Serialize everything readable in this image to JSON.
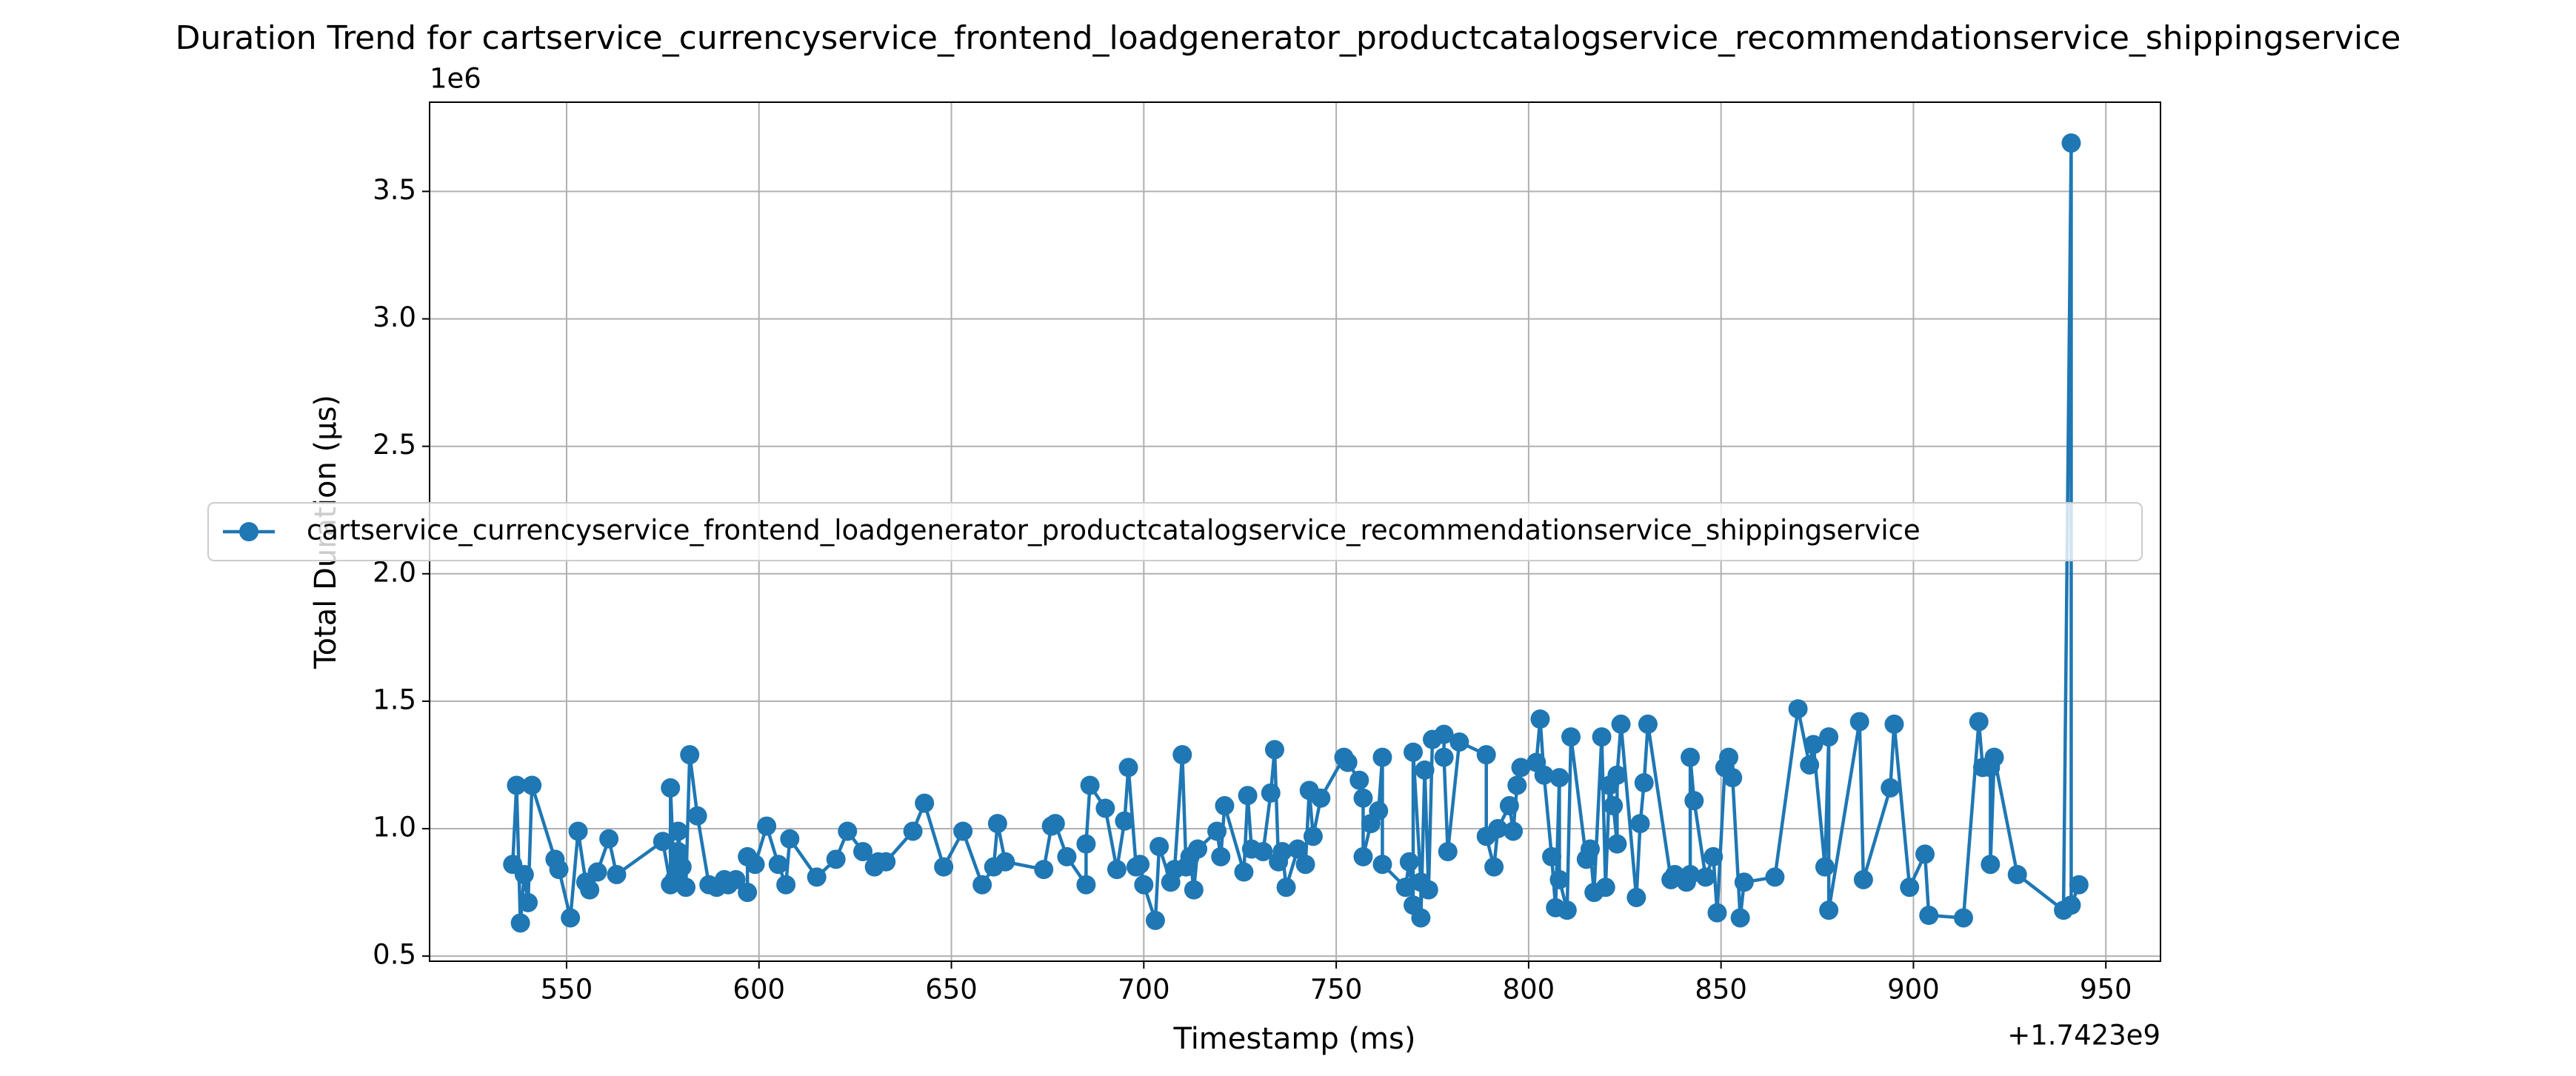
{
  "chart_data": {
    "type": "line",
    "title": "Duration Trend for cartservice_currencyservice_frontend_loadgenerator_productcatalogservice_recommendationservice_shippingservice",
    "xlabel": "Timestamp (ms)",
    "ylabel": "Total Duration (µs)",
    "x_offset_label": "+1.7423e9",
    "y_offset_label": "1e6",
    "xlim": [
      514.4,
      964.2
    ],
    "ylim": [
      0.48,
      3.85
    ],
    "xticks": [
      550,
      600,
      650,
      700,
      750,
      800,
      850,
      900,
      950
    ],
    "yticks": [
      0.5,
      {
        "value": 1.0,
        "label": "1.0"
      },
      1.5,
      {
        "value": 2.0,
        "label": "2.0"
      },
      2.5,
      {
        "value": 3.0,
        "label": "3.0"
      },
      3.5
    ],
    "grid": true,
    "legend": "center left",
    "marker": "o",
    "x": [
      536,
      537,
      538,
      539,
      540,
      541,
      547,
      548,
      551,
      553,
      555,
      556,
      558,
      561,
      563,
      575,
      577,
      577,
      578,
      579,
      579,
      580,
      581,
      582,
      584,
      587,
      589,
      591,
      592,
      594,
      597,
      597,
      599,
      602,
      605,
      607,
      608,
      615,
      620,
      623,
      627,
      630,
      631,
      633,
      640,
      643,
      648,
      653,
      658,
      661,
      662,
      664,
      674,
      676,
      677,
      680,
      685,
      685,
      686,
      690,
      693,
      695,
      696,
      698,
      699,
      700,
      703,
      704,
      707,
      708,
      710,
      711,
      712,
      713,
      714,
      719,
      720,
      721,
      726,
      727,
      728,
      731,
      733,
      734,
      735,
      736,
      737,
      740,
      742,
      743,
      744,
      746,
      752,
      753,
      756,
      757,
      757,
      759,
      761,
      762,
      762,
      768,
      769,
      770,
      770,
      772,
      772,
      773,
      774,
      775,
      778,
      778,
      779,
      782,
      789,
      789,
      791,
      792,
      795,
      796,
      797,
      798,
      802,
      803,
      804,
      806,
      807,
      808,
      808,
      810,
      811,
      815,
      816,
      817,
      819,
      820,
      821,
      822,
      823,
      823,
      824,
      828,
      829,
      830,
      831,
      837,
      838,
      841,
      842,
      842,
      843,
      846,
      848,
      849,
      851,
      852,
      853,
      855,
      856,
      864,
      870,
      873,
      874,
      877,
      878,
      878,
      886,
      887,
      894,
      895,
      899,
      903,
      904,
      913,
      917,
      918,
      920,
      920,
      921,
      927,
      939,
      941,
      941,
      943
    ],
    "series": [
      {
        "name": "cartservice_currencyservice_frontend_loadgenerator_productcatalogservice_recommendationservice_shippingservice",
        "color": "#1f77b4",
        "values": [
          0.86,
          1.17,
          0.63,
          0.82,
          0.71,
          1.17,
          0.88,
          0.84,
          0.65,
          0.99,
          0.79,
          0.76,
          0.83,
          0.96,
          0.82,
          0.95,
          0.78,
          1.16,
          0.8,
          0.91,
          0.99,
          0.85,
          0.77,
          1.29,
          1.05,
          0.78,
          0.77,
          0.8,
          0.78,
          0.8,
          0.75,
          0.89,
          0.86,
          1.01,
          0.86,
          0.78,
          0.96,
          0.81,
          0.88,
          0.99,
          0.91,
          0.85,
          0.87,
          0.87,
          0.99,
          1.1,
          0.85,
          0.99,
          0.78,
          0.85,
          1.02,
          0.87,
          0.84,
          1.01,
          1.02,
          0.89,
          0.78,
          0.94,
          1.17,
          1.08,
          0.84,
          1.03,
          1.24,
          0.85,
          0.86,
          0.78,
          0.64,
          0.93,
          0.79,
          0.84,
          1.29,
          0.85,
          0.89,
          0.76,
          0.92,
          0.99,
          0.89,
          1.09,
          0.83,
          1.13,
          0.92,
          0.91,
          1.14,
          1.31,
          0.87,
          0.91,
          0.77,
          0.92,
          0.86,
          1.15,
          0.97,
          1.12,
          1.28,
          1.26,
          1.19,
          1.12,
          0.89,
          1.02,
          1.07,
          1.28,
          0.86,
          0.77,
          0.87,
          0.7,
          1.3,
          0.79,
          0.65,
          1.23,
          0.76,
          1.35,
          1.37,
          1.28,
          0.91,
          1.34,
          1.29,
          0.97,
          0.85,
          1.0,
          1.09,
          0.99,
          1.17,
          1.24,
          1.26,
          1.43,
          1.21,
          0.89,
          0.69,
          1.2,
          0.8,
          0.68,
          1.36,
          0.88,
          0.92,
          0.75,
          1.36,
          0.77,
          1.17,
          1.09,
          0.94,
          1.21,
          1.41,
          0.73,
          1.02,
          1.18,
          1.41,
          0.8,
          0.82,
          0.79,
          0.82,
          1.28,
          1.11,
          0.81,
          0.89,
          0.67,
          1.24,
          1.28,
          1.2,
          0.65,
          0.79,
          0.81,
          1.47,
          1.25,
          1.33,
          0.85,
          1.36,
          0.68,
          1.42,
          0.8,
          1.16,
          1.41,
          0.77,
          0.9,
          0.66,
          0.65,
          1.42,
          1.24,
          1.24,
          0.86,
          1.28,
          0.82,
          0.68,
          3.69,
          0.7,
          0.78
        ]
      }
    ]
  }
}
